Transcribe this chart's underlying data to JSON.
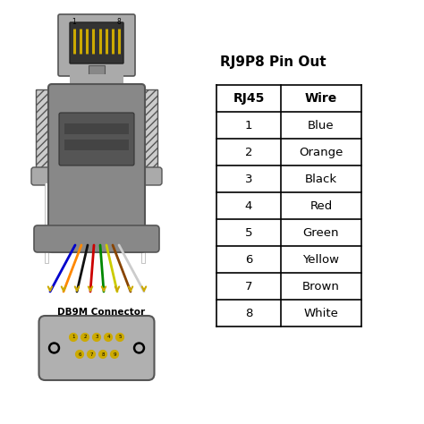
{
  "title": "RJ9P8 Pin Out",
  "table_headers": [
    "RJ45",
    "Wire"
  ],
  "table_rows": [
    [
      "1",
      "Blue"
    ],
    [
      "2",
      "Orange"
    ],
    [
      "3",
      "Black"
    ],
    [
      "4",
      "Red"
    ],
    [
      "5",
      "Green"
    ],
    [
      "6",
      "Yellow"
    ],
    [
      "7",
      "Brown"
    ],
    [
      "8",
      "White"
    ]
  ],
  "wire_colors": [
    "#0000cc",
    "#ff8800",
    "#111111",
    "#cc0000",
    "#008800",
    "#cccc00",
    "#884400",
    "#cccccc"
  ],
  "bg_color": "#ffffff",
  "body_gray": "#888888",
  "body_light": "#aaaaaa",
  "body_dark": "#555555",
  "body_darker": "#666666",
  "rj45_body": "#aaaaaa",
  "rj45_inner": "#555555",
  "rj45_recess": "#333333",
  "pin_gold": "#ccaa00",
  "db9_body": "#b0b0b0",
  "db9_pin": "#ccaa00",
  "db9_label": "DB9M Connector",
  "screw_post_color": "#cccccc",
  "wire_end_gold": "#ccaa00",
  "panel_dark": "#555555",
  "panel_darker": "#444444",
  "base_gray": "#888888"
}
